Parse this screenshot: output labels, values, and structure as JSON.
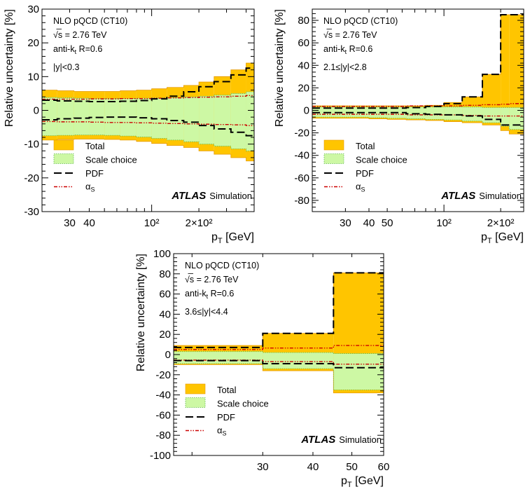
{
  "chart_data": [
    {
      "type": "area",
      "xlabel": "p",
      "xlabel_sub": "T",
      "xlabel_unit": " [GeV]",
      "ylabel": "Relative uncertainty [%]",
      "xscale": "log",
      "xlim": [
        20,
        450
      ],
      "ylim": [
        -30,
        30
      ],
      "yticks": [
        -30,
        -20,
        -10,
        0,
        10,
        20,
        30
      ],
      "xticks": [
        30,
        40,
        100,
        200
      ],
      "xtick_labels": [
        "30",
        "40",
        "10²",
        "2×10²"
      ],
      "text_lines": [
        "NLO pQCD (CT10)",
        "√s = 2.76 TeV",
        "anti-k",
        "t",
        " R=0.6",
        "|y|<0.3"
      ],
      "legend": [
        "Total",
        "Scale choice",
        "PDF",
        "αS"
      ],
      "brand": "ATLAS",
      "brand_sub": "Simulation",
      "bin_edges": [
        20,
        25,
        32,
        40,
        50,
        63,
        80,
        100,
        125,
        160,
        200,
        250,
        320,
        400,
        450
      ],
      "total_up": [
        6.0,
        5.8,
        5.6,
        5.6,
        5.6,
        5.8,
        6.0,
        6.4,
        6.8,
        7.4,
        8.4,
        10.0,
        12.0,
        14.0
      ],
      "total_down": [
        -8.8,
        -8.6,
        -8.5,
        -8.5,
        -8.6,
        -8.8,
        -9.2,
        -9.8,
        -10.4,
        -11.0,
        -12.0,
        -13.0,
        -14.0,
        -15.0
      ],
      "scale_up": [
        3.8,
        3.7,
        3.6,
        3.5,
        3.5,
        3.5,
        3.6,
        3.7,
        3.8,
        4.0,
        4.2,
        4.5,
        5.0,
        5.5
      ],
      "scale_down": [
        -7.5,
        -7.4,
        -7.3,
        -7.3,
        -7.4,
        -7.6,
        -7.9,
        -8.3,
        -8.8,
        -9.3,
        -10.0,
        -10.6,
        -11.4,
        -12.0
      ],
      "pdf_up": [
        3.0,
        2.8,
        2.7,
        2.6,
        2.6,
        2.7,
        2.9,
        3.4,
        4.2,
        5.5,
        7.0,
        8.5,
        10.5,
        12.5
      ],
      "pdf_down": [
        -2.8,
        -2.5,
        -2.3,
        -2.1,
        -2.0,
        -2.0,
        -2.2,
        -2.5,
        -3.0,
        -3.5,
        -4.5,
        -5.5,
        -6.5,
        -7.5
      ],
      "alpha_up": [
        3.3,
        3.3,
        3.3,
        3.4,
        3.4,
        3.5,
        3.5,
        3.6,
        3.7,
        3.8,
        3.9,
        4.0,
        4.2,
        4.4
      ],
      "alpha_down": [
        -3.3,
        -3.4,
        -3.4,
        -3.5,
        -3.6,
        -3.6,
        -3.7,
        -3.8,
        -3.9,
        -4.0,
        -4.1,
        -4.2,
        -4.3,
        -4.5
      ]
    },
    {
      "type": "area",
      "xlabel": "p",
      "xlabel_sub": "T",
      "xlabel_unit": " [GeV]",
      "ylabel": "Relative uncertainty [%]",
      "xscale": "log",
      "xlim": [
        20,
        265
      ],
      "ylim": [
        -90,
        90
      ],
      "yticks": [
        -80,
        -60,
        -40,
        -20,
        0,
        20,
        40,
        60,
        80
      ],
      "xticks": [
        30,
        40,
        50,
        100,
        200
      ],
      "xtick_labels": [
        "30",
        "40",
        "50",
        "10²",
        "2×10²"
      ],
      "text_lines": [
        "NLO pQCD (CT10)",
        "√s = 2.76 TeV",
        "anti-k",
        "t",
        " R=0.6",
        "2.1≤|y|<2.8"
      ],
      "legend": [
        "Total",
        "Scale choice",
        "PDF",
        "αS"
      ],
      "brand": "ATLAS",
      "brand_sub": "Simulation",
      "bin_edges": [
        20,
        25,
        32,
        40,
        50,
        63,
        80,
        100,
        125,
        160,
        200,
        222,
        265
      ],
      "total_up": [
        4.0,
        4.0,
        4.0,
        4.0,
        4.0,
        4.0,
        4.5,
        7.0,
        12.0,
        32.0,
        85.0,
        85.0
      ],
      "total_down": [
        -7.0,
        -7.0,
        -7.0,
        -7.5,
        -8.0,
        -8.5,
        -9.0,
        -10.0,
        -11.0,
        -13.0,
        -18.0,
        -21.0
      ],
      "scale_up": [
        3.0,
        3.0,
        3.0,
        3.0,
        3.0,
        3.0,
        3.0,
        3.0,
        3.0,
        2.5,
        2.5,
        2.5
      ],
      "scale_down": [
        -6.0,
        -6.0,
        -6.0,
        -6.5,
        -7.0,
        -7.5,
        -8.0,
        -8.5,
        -9.5,
        -11.0,
        -14.0,
        -17.0
      ],
      "pdf_up": [
        2.0,
        2.0,
        2.0,
        2.0,
        2.0,
        2.5,
        3.5,
        6.0,
        12.0,
        32.0,
        85.0,
        85.0
      ],
      "pdf_down": [
        -2.0,
        -2.0,
        -2.0,
        -2.0,
        -2.0,
        -3.0,
        -3.5,
        -4.0,
        -5.0,
        -8.0,
        -13.0,
        -13.0
      ],
      "alpha_up": [
        3.5,
        3.5,
        3.5,
        3.5,
        3.5,
        4.0,
        4.0,
        4.0,
        4.5,
        5.0,
        5.5,
        6.0
      ],
      "alpha_down": [
        -3.5,
        -3.5,
        -3.5,
        -3.5,
        -3.5,
        -4.0,
        -4.0,
        -4.0,
        -4.5,
        -5.0,
        -5.0,
        -5.0
      ]
    },
    {
      "type": "area",
      "xlabel": "p",
      "xlabel_sub": "T",
      "xlabel_unit": " [GeV]",
      "ylabel": "Relative uncertainty [%]",
      "xscale": "log",
      "xlim": [
        18,
        60
      ],
      "ylim": [
        -100,
        100
      ],
      "yticks": [
        -100,
        -80,
        -60,
        -40,
        -20,
        0,
        20,
        40,
        60,
        80,
        100
      ],
      "xticks": [
        30,
        40,
        50,
        60
      ],
      "xtick_labels": [
        "30",
        "40",
        "50",
        "60"
      ],
      "text_lines": [
        "NLO pQCD (CT10)",
        "√s = 2.76 TeV",
        "anti-k",
        "t",
        " R=0.6",
        "3.6≤|y|<4.4"
      ],
      "legend": [
        "Total",
        "Scale choice",
        "PDF",
        "αS"
      ],
      "brand": "ATLAS",
      "brand_sub": "Simulation",
      "bin_edges": [
        18,
        30,
        45,
        60
      ],
      "total_up": [
        9.0,
        21.0,
        81.0
      ],
      "total_down": [
        -10.0,
        -16.0,
        -38.0
      ],
      "scale_up": [
        3.0,
        2.0,
        1.0
      ],
      "scale_down": [
        -9.0,
        -14.0,
        -35.0
      ],
      "pdf_up": [
        7.0,
        21.0,
        81.0
      ],
      "pdf_down": [
        -6.0,
        -9.0,
        -13.0
      ],
      "alpha_up": [
        5.0,
        6.5,
        9.0
      ],
      "alpha_down": [
        -5.5,
        -7.0,
        -9.5
      ]
    }
  ]
}
